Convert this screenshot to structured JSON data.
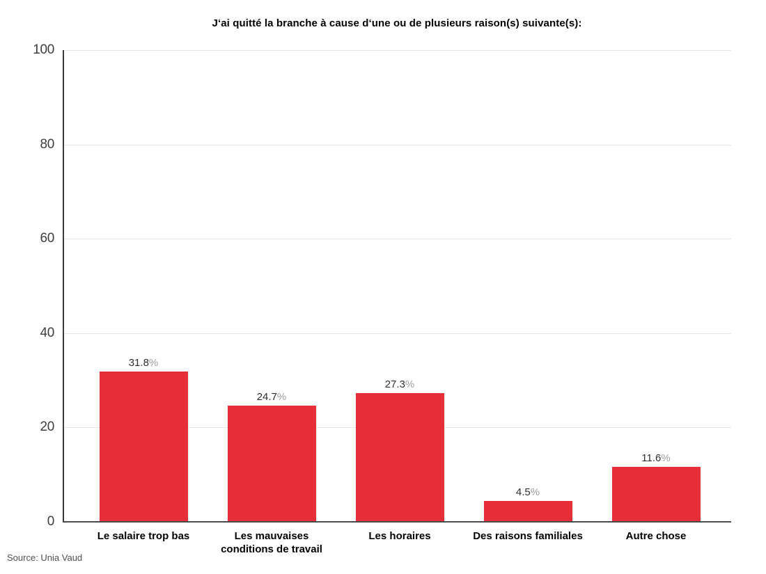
{
  "chart_data": {
    "type": "bar",
    "title": "J‘ai quitté la branche à cause d‘une ou de plusieurs raison(s) suivante(s):",
    "categories": [
      "Le salaire trop bas",
      "Les mauvaises conditions de travail",
      "Les horaires",
      "Des raisons familiales",
      "Autre chose"
    ],
    "values": [
      31.8,
      24.7,
      27.3,
      4.5,
      11.6
    ],
    "value_labels": [
      "31.8%",
      "24.7%",
      "27.3%",
      "4.5%",
      "11.6%"
    ],
    "unit": "%",
    "xlabel": "",
    "ylabel": "",
    "ylim": [
      0,
      100
    ],
    "yticks": [
      0,
      20,
      40,
      60,
      80,
      100
    ],
    "grid": "horizontal",
    "legend": "none",
    "bar_color": "#e62e38",
    "axis_color": "#3a3a3a",
    "gridline_color": "#e5e5e5",
    "value_label_color": "#2e2e2e",
    "percent_sign_color": "#9e9e9e"
  },
  "source": {
    "label": "Source: Unia Vaud"
  }
}
